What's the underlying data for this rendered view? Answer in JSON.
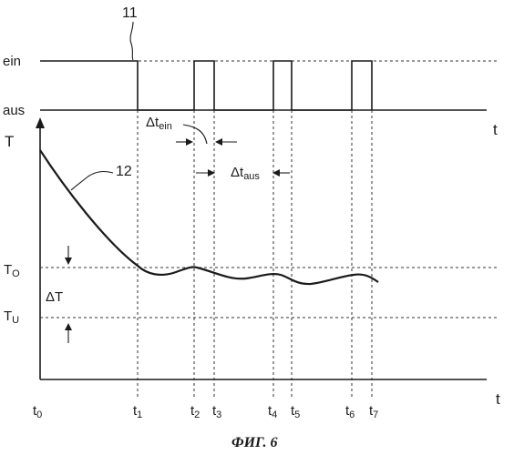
{
  "top_panel": {
    "signal_ref": "11",
    "level_on": "ein",
    "level_off": "aus",
    "axis": "t"
  },
  "bottom_panel": {
    "y_axis": "T",
    "curve_ref": "12",
    "axis": "t",
    "upper_threshold": "T",
    "upper_threshold_sub": "O",
    "lower_threshold": "T",
    "lower_threshold_sub": "U",
    "delta_T": "ΔT"
  },
  "intervals": {
    "on_label": "Δt",
    "on_sub": "ein",
    "off_label": "Δt",
    "off_sub": "aus"
  },
  "time_marks": [
    {
      "base": "t",
      "sub": "0"
    },
    {
      "base": "t",
      "sub": "1"
    },
    {
      "base": "t",
      "sub": "2"
    },
    {
      "base": "t",
      "sub": "3"
    },
    {
      "base": "t",
      "sub": "4"
    },
    {
      "base": "t",
      "sub": "5"
    },
    {
      "base": "t",
      "sub": "6"
    },
    {
      "base": "t",
      "sub": "7"
    }
  ],
  "caption": "ФИГ. 6"
}
